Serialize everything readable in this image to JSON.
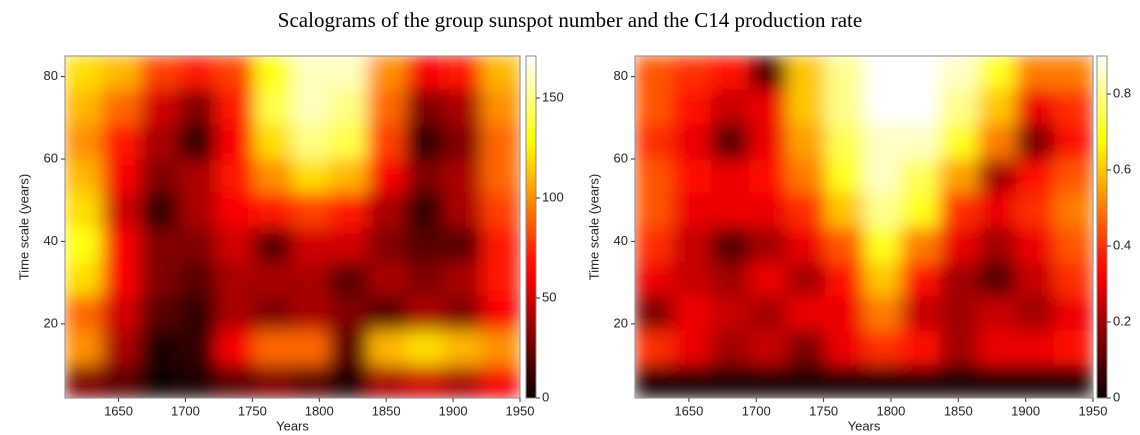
{
  "title": "Scalograms of the group sunspot number and the C14 production rate",
  "chart_data": [
    {
      "type": "heatmap",
      "colormap": "hot",
      "xlabel": "Years",
      "ylabel": "Time scale (years)",
      "xlim": [
        1610,
        1950
      ],
      "ylim": [
        2,
        85
      ],
      "xticks": [
        1650,
        1700,
        1750,
        1800,
        1850,
        1900,
        1950
      ],
      "yticks": [
        20,
        40,
        60,
        80
      ],
      "clim": [
        0,
        171
      ],
      "cticks": [
        0,
        50,
        100,
        150
      ],
      "x": [
        1624,
        1652,
        1681,
        1709,
        1737,
        1766,
        1794,
        1822,
        1851,
        1879,
        1907,
        1936
      ],
      "y": [
        6,
        14,
        23,
        31,
        39,
        48,
        56,
        64,
        73,
        81
      ],
      "z": [
        [
          30,
          20,
          0,
          5,
          20,
          30,
          20,
          5,
          40,
          50,
          40,
          60
        ],
        [
          100,
          40,
          5,
          10,
          60,
          90,
          90,
          20,
          110,
          120,
          110,
          100
        ],
        [
          90,
          50,
          20,
          10,
          40,
          30,
          40,
          30,
          20,
          40,
          30,
          60
        ],
        [
          120,
          60,
          30,
          20,
          40,
          40,
          40,
          20,
          40,
          30,
          40,
          70
        ],
        [
          130,
          60,
          30,
          30,
          50,
          20,
          50,
          50,
          30,
          20,
          20,
          70
        ],
        [
          120,
          50,
          10,
          40,
          60,
          70,
          80,
          70,
          40,
          10,
          40,
          80
        ],
        [
          110,
          60,
          30,
          40,
          70,
          100,
          120,
          110,
          60,
          30,
          40,
          90
        ],
        [
          100,
          70,
          40,
          10,
          60,
          120,
          150,
          140,
          80,
          10,
          30,
          90
        ],
        [
          110,
          90,
          50,
          30,
          70,
          140,
          160,
          150,
          90,
          30,
          40,
          100
        ],
        [
          120,
          110,
          80,
          70,
          80,
          130,
          160,
          160,
          100,
          60,
          70,
          110
        ]
      ]
    },
    {
      "type": "heatmap",
      "colormap": "hot",
      "xlabel": "Years",
      "ylabel": "Time scale (years)",
      "xlim": [
        1610,
        1950
      ],
      "ylim": [
        2,
        85
      ],
      "xticks": [
        1650,
        1700,
        1750,
        1800,
        1850,
        1900,
        1950
      ],
      "yticks": [
        20,
        40,
        60,
        80
      ],
      "clim": [
        0,
        0.9
      ],
      "cticks": [
        0,
        0.2,
        0.4,
        0.6,
        0.8
      ],
      "x": [
        1624,
        1652,
        1681,
        1709,
        1737,
        1766,
        1794,
        1822,
        1851,
        1879,
        1907,
        1936
      ],
      "y": [
        6,
        14,
        23,
        31,
        39,
        48,
        56,
        64,
        73,
        81
      ],
      "z": [
        [
          0.02,
          0.02,
          0.02,
          0.02,
          0.02,
          0.02,
          0.02,
          0.02,
          0.02,
          0.02,
          0.02,
          0.02
        ],
        [
          0.4,
          0.3,
          0.2,
          0.25,
          0.15,
          0.3,
          0.4,
          0.35,
          0.2,
          0.3,
          0.3,
          0.35
        ],
        [
          0.15,
          0.3,
          0.25,
          0.2,
          0.3,
          0.3,
          0.5,
          0.25,
          0.2,
          0.25,
          0.2,
          0.3
        ],
        [
          0.3,
          0.25,
          0.2,
          0.3,
          0.2,
          0.35,
          0.6,
          0.35,
          0.2,
          0.1,
          0.25,
          0.4
        ],
        [
          0.4,
          0.25,
          0.1,
          0.2,
          0.3,
          0.45,
          0.7,
          0.5,
          0.3,
          0.2,
          0.3,
          0.45
        ],
        [
          0.45,
          0.3,
          0.3,
          0.3,
          0.4,
          0.6,
          0.8,
          0.7,
          0.4,
          0.3,
          0.4,
          0.5
        ],
        [
          0.45,
          0.35,
          0.3,
          0.35,
          0.5,
          0.7,
          0.85,
          0.75,
          0.55,
          0.2,
          0.35,
          0.45
        ],
        [
          0.4,
          0.3,
          0.1,
          0.3,
          0.55,
          0.75,
          0.85,
          0.85,
          0.7,
          0.5,
          0.15,
          0.35
        ],
        [
          0.45,
          0.35,
          0.25,
          0.3,
          0.6,
          0.8,
          0.9,
          0.9,
          0.8,
          0.6,
          0.3,
          0.4
        ],
        [
          0.45,
          0.4,
          0.35,
          0.1,
          0.6,
          0.8,
          0.9,
          0.9,
          0.85,
          0.7,
          0.5,
          0.5
        ]
      ]
    }
  ]
}
